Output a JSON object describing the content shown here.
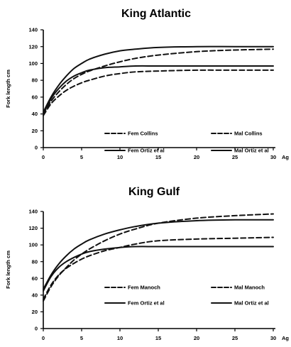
{
  "chart_data": [
    {
      "type": "line",
      "title": "King Atlantic",
      "ylabel": "Fork length cm",
      "xlabel": "Ag",
      "xlim": [
        0,
        30
      ],
      "ylim": [
        0,
        140
      ],
      "xticks": [
        0,
        5,
        10,
        15,
        20,
        25,
        30
      ],
      "yticks": [
        0,
        20,
        40,
        60,
        80,
        100,
        120,
        140
      ],
      "grid": false,
      "legend_placement": "inside lower-right, two columns",
      "series": [
        {
          "name": "Fem Collins",
          "style": "dashed",
          "x": [
            0,
            1,
            2,
            3,
            4,
            5,
            6,
            8,
            10,
            12,
            15,
            20,
            25,
            30
          ],
          "values": [
            38,
            52,
            61,
            68,
            73,
            77,
            80,
            85,
            88,
            90,
            91,
            92,
            92,
            92
          ]
        },
        {
          "name": "Mal Collins",
          "style": "dashed",
          "x": [
            0,
            1,
            2,
            3,
            4,
            5,
            6,
            8,
            10,
            12,
            15,
            20,
            25,
            30
          ],
          "values": [
            40,
            55,
            66,
            75,
            82,
            87,
            91,
            97,
            102,
            106,
            110,
            114,
            116,
            117
          ]
        },
        {
          "name": "Fem Ortiz et al",
          "style": "solid",
          "x": [
            0,
            1,
            2,
            3,
            4,
            5,
            6,
            8,
            10,
            12,
            15,
            20,
            25,
            30
          ],
          "values": [
            40,
            58,
            70,
            79,
            85,
            89,
            92,
            95,
            96,
            97,
            97,
            97,
            97,
            97
          ]
        },
        {
          "name": "Mal Ortiz et al",
          "style": "solid",
          "x": [
            0,
            1,
            2,
            3,
            4,
            5,
            6,
            8,
            10,
            12,
            15,
            20,
            25,
            30
          ],
          "values": [
            42,
            60,
            74,
            85,
            94,
            100,
            105,
            111,
            115,
            117,
            119,
            120,
            120,
            120
          ]
        }
      ]
    },
    {
      "type": "line",
      "title": "King Gulf",
      "ylabel": "Fork length cm",
      "xlabel": "Ag",
      "xlim": [
        0,
        30
      ],
      "ylim": [
        0,
        140
      ],
      "xticks": [
        0,
        5,
        10,
        15,
        20,
        25,
        30
      ],
      "yticks": [
        0,
        20,
        40,
        60,
        80,
        100,
        120,
        140
      ],
      "grid": false,
      "legend_placement": "inside lower-right, two columns",
      "series": [
        {
          "name": "Fem Manoch",
          "style": "dashed",
          "x": [
            0,
            1,
            2,
            3,
            4,
            5,
            6,
            8,
            10,
            12,
            15,
            20,
            25,
            30
          ],
          "values": [
            35,
            52,
            64,
            72,
            78,
            83,
            87,
            93,
            97,
            101,
            105,
            107,
            108,
            109
          ]
        },
        {
          "name": "Mal Manoch",
          "style": "dashed",
          "x": [
            0,
            1,
            2,
            3,
            4,
            5,
            6,
            8,
            10,
            12,
            15,
            20,
            25,
            30
          ],
          "values": [
            33,
            50,
            63,
            73,
            82,
            89,
            95,
            105,
            113,
            119,
            126,
            132,
            135,
            137
          ]
        },
        {
          "name": "Fem Ortiz et al",
          "style": "solid",
          "x": [
            0,
            1,
            2,
            3,
            4,
            5,
            6,
            8,
            10,
            12,
            15,
            20,
            25,
            30
          ],
          "values": [
            45,
            62,
            73,
            80,
            85,
            89,
            92,
            95,
            97,
            98,
            98,
            98,
            98,
            98
          ]
        },
        {
          "name": "Mal Ortiz et al",
          "style": "solid",
          "x": [
            0,
            1,
            2,
            3,
            4,
            5,
            6,
            8,
            10,
            12,
            15,
            20,
            25,
            30
          ],
          "values": [
            47,
            64,
            77,
            87,
            95,
            101,
            106,
            113,
            118,
            122,
            126,
            129,
            130,
            130
          ]
        }
      ]
    }
  ]
}
